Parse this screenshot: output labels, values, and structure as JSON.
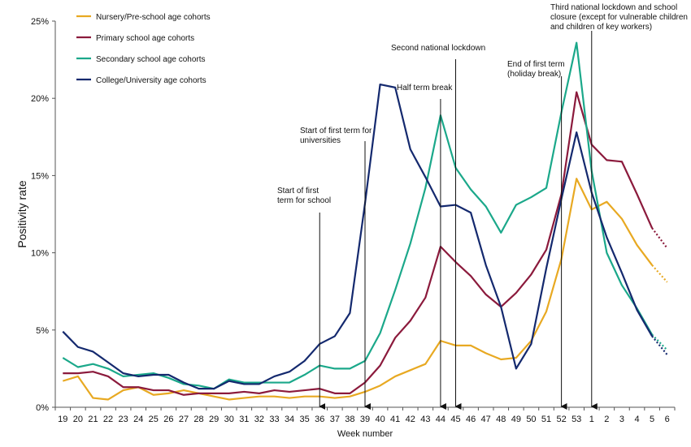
{
  "chart_data": {
    "type": "line",
    "xlabel": "Week number",
    "ylabel": "Positivity rate",
    "y_ticks": [
      "0%",
      "5%",
      "10%",
      "15%",
      "20%",
      "25%"
    ],
    "ylim": [
      0,
      25
    ],
    "categories": [
      "19",
      "20",
      "21",
      "22",
      "23",
      "24",
      "25",
      "26",
      "27",
      "28",
      "29",
      "30",
      "31",
      "32",
      "33",
      "34",
      "35",
      "36",
      "37",
      "38",
      "39",
      "40",
      "41",
      "42",
      "43",
      "44",
      "45",
      "46",
      "47",
      "48",
      "49",
      "50",
      "51",
      "52",
      "53",
      "1",
      "2",
      "3",
      "4",
      "5",
      "6"
    ],
    "series": [
      {
        "name": "Nursery/Pre-school age cohorts",
        "color": "#E8A922",
        "values": [
          1.7,
          2.0,
          0.6,
          0.5,
          1.1,
          1.3,
          0.8,
          0.9,
          1.1,
          0.9,
          0.7,
          0.5,
          0.6,
          0.7,
          0.7,
          0.6,
          0.7,
          0.7,
          0.6,
          0.7,
          1.0,
          1.4,
          2.0,
          2.4,
          2.8,
          4.3,
          4.0,
          4.0,
          3.5,
          3.1,
          3.2,
          4.3,
          6.2,
          9.6,
          14.8,
          12.8,
          13.3,
          12.2,
          10.5,
          9.2,
          null
        ],
        "dotted_values": [
          null,
          null,
          null,
          null,
          null,
          null,
          null,
          null,
          null,
          null,
          null,
          null,
          null,
          null,
          null,
          null,
          null,
          null,
          null,
          null,
          null,
          null,
          null,
          null,
          null,
          null,
          null,
          null,
          null,
          null,
          null,
          null,
          null,
          null,
          null,
          null,
          null,
          null,
          null,
          9.2,
          8.1
        ]
      },
      {
        "name": "Primary school age cohorts",
        "color": "#8B1A3C",
        "values": [
          2.2,
          2.2,
          2.3,
          2.0,
          1.3,
          1.3,
          1.1,
          1.1,
          0.8,
          0.9,
          0.9,
          0.9,
          1.0,
          0.9,
          1.1,
          1.0,
          1.1,
          1.2,
          0.9,
          0.9,
          1.6,
          2.7,
          4.5,
          5.6,
          7.1,
          10.4,
          9.4,
          8.5,
          7.3,
          6.5,
          7.4,
          8.6,
          10.2,
          13.8,
          20.4,
          17.0,
          16.0,
          15.9,
          13.8,
          11.6,
          null
        ],
        "dotted_values": [
          null,
          null,
          null,
          null,
          null,
          null,
          null,
          null,
          null,
          null,
          null,
          null,
          null,
          null,
          null,
          null,
          null,
          null,
          null,
          null,
          null,
          null,
          null,
          null,
          null,
          null,
          null,
          null,
          null,
          null,
          null,
          null,
          null,
          null,
          null,
          null,
          null,
          null,
          null,
          11.6,
          10.3
        ]
      },
      {
        "name": "Secondary school age cohorts",
        "color": "#1BA88A",
        "values": [
          3.2,
          2.6,
          2.8,
          2.5,
          2.0,
          2.1,
          2.2,
          1.9,
          1.5,
          1.4,
          1.2,
          1.8,
          1.6,
          1.6,
          1.6,
          1.6,
          2.1,
          2.7,
          2.5,
          2.5,
          3.0,
          4.8,
          7.6,
          10.6,
          14.2,
          18.9,
          15.5,
          14.1,
          13.0,
          11.3,
          13.1,
          13.6,
          14.2,
          19.1,
          23.6,
          15.3,
          10.0,
          7.9,
          6.4,
          4.7,
          null
        ],
        "dotted_values": [
          null,
          null,
          null,
          null,
          null,
          null,
          null,
          null,
          null,
          null,
          null,
          null,
          null,
          null,
          null,
          null,
          null,
          null,
          null,
          null,
          null,
          null,
          null,
          null,
          null,
          null,
          null,
          null,
          null,
          null,
          null,
          null,
          null,
          null,
          null,
          null,
          null,
          null,
          null,
          4.7,
          3.7
        ]
      },
      {
        "name": "College/University age cohorts",
        "color": "#14296E",
        "values": [
          4.9,
          3.9,
          3.6,
          2.9,
          2.2,
          2.0,
          2.1,
          2.1,
          1.6,
          1.2,
          1.2,
          1.7,
          1.5,
          1.5,
          2.0,
          2.3,
          3.0,
          4.1,
          4.6,
          6.1,
          13.2,
          20.9,
          20.7,
          16.7,
          14.9,
          13.0,
          13.1,
          12.6,
          9.2,
          6.5,
          2.5,
          4.1,
          9.0,
          13.5,
          17.8,
          13.9,
          11.0,
          8.7,
          6.3,
          4.6,
          null
        ],
        "dotted_values": [
          null,
          null,
          null,
          null,
          null,
          null,
          null,
          null,
          null,
          null,
          null,
          null,
          null,
          null,
          null,
          null,
          null,
          null,
          null,
          null,
          null,
          null,
          null,
          null,
          null,
          null,
          null,
          null,
          null,
          null,
          null,
          null,
          null,
          null,
          null,
          null,
          null,
          null,
          null,
          4.6,
          3.4
        ]
      }
    ],
    "legend": {
      "placement": "top-left"
    },
    "annotations": [
      {
        "key": "school-start",
        "lines": [
          "Start of first",
          "term for school"
        ],
        "x_category": "36"
      },
      {
        "key": "uni-start",
        "lines": [
          "Start of first term for",
          "universities"
        ],
        "x_category": "39"
      },
      {
        "key": "half-term",
        "lines": [
          "Half term break"
        ],
        "x_category": "44"
      },
      {
        "key": "second-lockdown",
        "lines": [
          "Second  national lockdown"
        ],
        "x_category": "45"
      },
      {
        "key": "end-first-term",
        "lines": [
          "End of first term",
          "(holiday break)"
        ],
        "x_category": "52"
      },
      {
        "key": "third-lockdown",
        "lines": [
          "Third national lockdown and school",
          "closure (except for vulnerable children",
          "and children of key workers)"
        ],
        "x_category": "1"
      }
    ]
  }
}
